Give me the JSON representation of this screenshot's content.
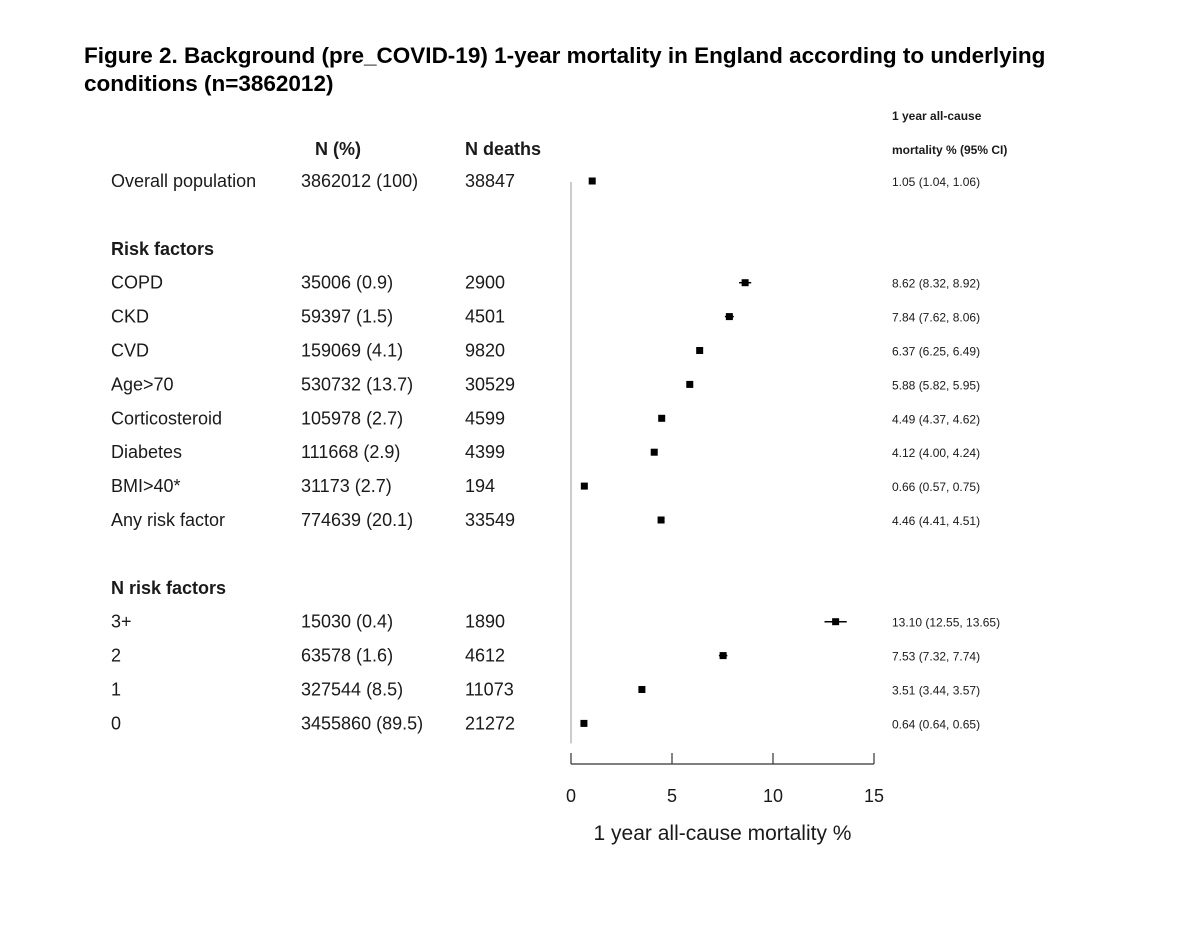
{
  "figure_title": "Figure 2. Background (pre_COVID-19) 1-year mortality in England according to underlying conditions (n=3862012)",
  "chart_data": {
    "type": "forest",
    "title": "Figure 2. Background (pre_COVID-19) 1-year mortality in England according to underlying conditions (n=3862012)",
    "columns": {
      "n_pct": "N (%)",
      "n_deaths": "N deaths",
      "ci_header_line1": "1 year all-cause",
      "ci_header_line2": "mortality % (95% CI)"
    },
    "rows": [
      {
        "kind": "data",
        "label": "Overall population",
        "n": "3862012 (100)",
        "deaths": "38847",
        "est": 1.05,
        "lo": 1.04,
        "hi": 1.06,
        "ci_text": "1.05 (1.04, 1.06)"
      },
      {
        "kind": "spacer"
      },
      {
        "kind": "header",
        "label": "Risk factors"
      },
      {
        "kind": "data",
        "label": "COPD",
        "n": "35006 (0.9)",
        "deaths": "2900",
        "est": 8.62,
        "lo": 8.32,
        "hi": 8.92,
        "ci_text": "8.62 (8.32, 8.92)"
      },
      {
        "kind": "data",
        "label": "CKD",
        "n": "59397 (1.5)",
        "deaths": "4501",
        "est": 7.84,
        "lo": 7.62,
        "hi": 8.06,
        "ci_text": "7.84 (7.62, 8.06)"
      },
      {
        "kind": "data",
        "label": "CVD",
        "n": "159069 (4.1)",
        "deaths": "9820",
        "est": 6.37,
        "lo": 6.25,
        "hi": 6.49,
        "ci_text": "6.37 (6.25, 6.49)"
      },
      {
        "kind": "data",
        "label": "Age>70",
        "n": "530732 (13.7)",
        "deaths": "30529",
        "est": 5.88,
        "lo": 5.82,
        "hi": 5.95,
        "ci_text": "5.88 (5.82, 5.95)"
      },
      {
        "kind": "data",
        "label": "Corticosteroid",
        "n": "105978 (2.7)",
        "deaths": "4599",
        "est": 4.49,
        "lo": 4.37,
        "hi": 4.62,
        "ci_text": "4.49 (4.37, 4.62)"
      },
      {
        "kind": "data",
        "label": "Diabetes",
        "n": "111668 (2.9)",
        "deaths": "4399",
        "est": 4.12,
        "lo": 4.0,
        "hi": 4.24,
        "ci_text": "4.12 (4.00, 4.24)"
      },
      {
        "kind": "data",
        "label": "BMI>40*",
        "n": "31173 (2.7)",
        "deaths": "194",
        "est": 0.66,
        "lo": 0.57,
        "hi": 0.75,
        "ci_text": "0.66 (0.57, 0.75)"
      },
      {
        "kind": "data",
        "label": "Any risk factor",
        "n": "774639 (20.1)",
        "deaths": "33549",
        "est": 4.46,
        "lo": 4.41,
        "hi": 4.51,
        "ci_text": "4.46 (4.41, 4.51)"
      },
      {
        "kind": "spacer"
      },
      {
        "kind": "header",
        "label": "N risk factors"
      },
      {
        "kind": "data",
        "label": "3+",
        "n": "15030 (0.4)",
        "deaths": "1890",
        "est": 13.1,
        "lo": 12.55,
        "hi": 13.65,
        "ci_text": "13.10 (12.55, 13.65)"
      },
      {
        "kind": "data",
        "label": "2",
        "n": "63578 (1.6)",
        "deaths": "4612",
        "est": 7.53,
        "lo": 7.32,
        "hi": 7.74,
        "ci_text": "7.53 (7.32, 7.74)"
      },
      {
        "kind": "data",
        "label": "1",
        "n": "327544 (8.5)",
        "deaths": "11073",
        "est": 3.51,
        "lo": 3.44,
        "hi": 3.57,
        "ci_text": "3.51 (3.44, 3.57)"
      },
      {
        "kind": "data",
        "label": "0",
        "n": "3455860 (89.5)",
        "deaths": "21272",
        "est": 0.64,
        "lo": 0.64,
        "hi": 0.65,
        "ci_text": "0.64 (0.64, 0.65)"
      }
    ],
    "xlim": [
      0,
      15
    ],
    "xticks": [
      0,
      5,
      10,
      15
    ],
    "xlabel": "1 year all-cause mortality  %",
    "reference_line": 0,
    "grid": false
  }
}
